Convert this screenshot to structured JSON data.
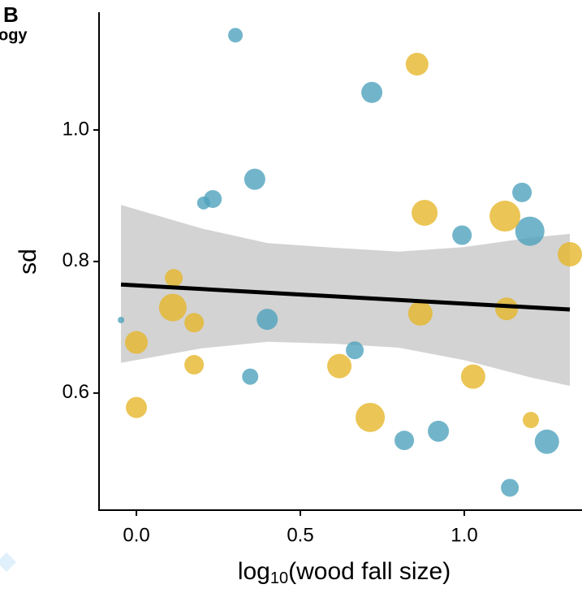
{
  "cropped_text": "ogy",
  "panel_label": "B",
  "chart_data": {
    "type": "scatter",
    "x_label": {
      "base": "log",
      "sub": "10",
      "rest": "(wood fall size)"
    },
    "y_label": "sd",
    "xlim": [
      -0.114,
      1.359
    ],
    "ylim": [
      0.422,
      1.179
    ],
    "xticks": [
      {
        "value": 0.0,
        "label": "0.0"
      },
      0.5,
      {
        "value": 1.0,
        "label": "1.0"
      }
    ],
    "yticks": [
      0.6,
      0.8,
      {
        "value": 1.0,
        "label": "1.0"
      }
    ],
    "band": {
      "color": "#d3d3d3",
      "x": [
        -0.047,
        0.2,
        0.4,
        0.6,
        0.8,
        1.0,
        1.2,
        1.322
      ],
      "upper": [
        0.886,
        0.85,
        0.828,
        0.821,
        0.815,
        0.822,
        0.836,
        0.842
      ],
      "lower": [
        0.646,
        0.668,
        0.678,
        0.675,
        0.669,
        0.65,
        0.624,
        0.611
      ]
    },
    "fit": {
      "color": "#000000",
      "x": [
        -0.047,
        1.322
      ],
      "values": [
        0.765,
        0.727
      ]
    },
    "series": [
      {
        "color": "#4fa3bd",
        "x": [
          -0.047,
          0.302,
          0.718,
          0.361,
          0.233,
          0.205,
          0.399,
          0.347,
          0.666,
          0.817,
          0.921,
          0.993,
          1.176,
          1.2,
          1.252,
          1.139
        ],
        "values": [
          0.711,
          1.144,
          1.057,
          0.925,
          0.895,
          0.889,
          0.712,
          0.625,
          0.665,
          0.528,
          0.542,
          0.84,
          0.905,
          0.846,
          0.526,
          0.456
        ],
        "sizes": [
          4,
          9,
          13,
          13,
          11,
          8,
          13,
          10,
          11,
          12,
          13,
          12,
          12,
          18,
          15,
          11
        ]
      },
      {
        "color": "#e6b62a",
        "x": [
          0.856,
          0.879,
          1.124,
          1.322,
          0.114,
          0.111,
          0.176,
          0.0,
          0.176,
          0.0,
          0.619,
          0.866,
          1.129,
          1.027,
          0.713,
          1.203
        ],
        "values": [
          1.1,
          0.874,
          0.869,
          0.811,
          0.775,
          0.73,
          0.707,
          0.677,
          0.643,
          0.578,
          0.641,
          0.721,
          0.728,
          0.625,
          0.563,
          0.559
        ],
        "sizes": [
          14,
          16,
          19,
          15,
          11,
          17,
          12,
          14,
          12,
          13,
          15,
          15,
          14,
          15,
          18,
          10
        ]
      }
    ]
  }
}
